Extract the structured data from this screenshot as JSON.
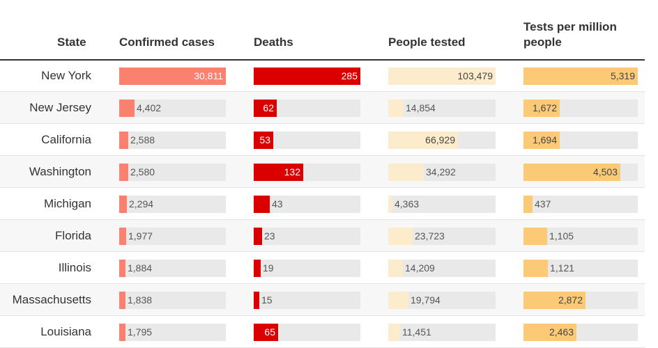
{
  "header": {
    "state": "State",
    "confirmed": "Confirmed cases",
    "deaths": "Deaths",
    "tested": "People tested",
    "tests_per_million_line1": "Tests per million",
    "tests_per_million_line2": "people"
  },
  "colors": {
    "confirmed": "#fa8070",
    "deaths": "#db0000",
    "tested": "#fdeccb",
    "tests_per_million": "#fcc977",
    "track": "#e9e9e9"
  },
  "chart_data": {
    "type": "table",
    "title": "",
    "columns": [
      "State",
      "Confirmed cases",
      "Deaths",
      "People tested",
      "Tests per million people"
    ],
    "max_scale": {
      "confirmed": 30811,
      "deaths": 285,
      "tested": 103479,
      "tests_per_million": 5319
    },
    "rows": [
      {
        "state": "New York",
        "confirmed": 30811,
        "deaths": 285,
        "tested": 103479,
        "tests_per_million": 5319
      },
      {
        "state": "New Jersey",
        "confirmed": 4402,
        "deaths": 62,
        "tested": 14854,
        "tests_per_million": 1672
      },
      {
        "state": "California",
        "confirmed": 2588,
        "deaths": 53,
        "tested": 66929,
        "tests_per_million": 1694
      },
      {
        "state": "Washington",
        "confirmed": 2580,
        "deaths": 132,
        "tested": 34292,
        "tests_per_million": 4503
      },
      {
        "state": "Michigan",
        "confirmed": 2294,
        "deaths": 43,
        "tested": 4363,
        "tests_per_million": 437
      },
      {
        "state": "Florida",
        "confirmed": 1977,
        "deaths": 23,
        "tested": 23723,
        "tests_per_million": 1105
      },
      {
        "state": "Illinois",
        "confirmed": 1884,
        "deaths": 19,
        "tested": 14209,
        "tests_per_million": 1121
      },
      {
        "state": "Massachusetts",
        "confirmed": 1838,
        "deaths": 15,
        "tested": 19794,
        "tests_per_million": 2872
      },
      {
        "state": "Louisiana",
        "confirmed": 1795,
        "deaths": 65,
        "tested": 11451,
        "tests_per_million": 2463
      }
    ]
  }
}
